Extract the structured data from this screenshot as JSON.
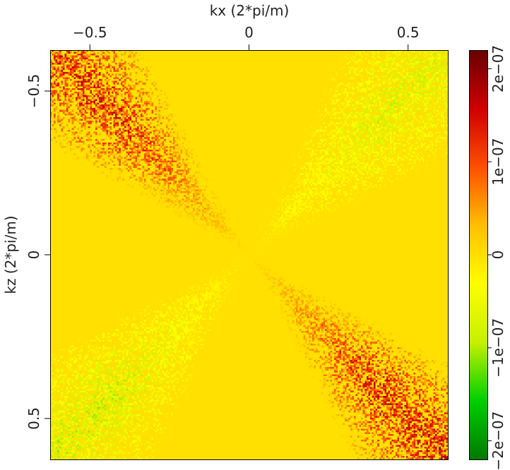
{
  "chart_data": {
    "type": "heatmap",
    "xlabel": "kx (2*pi/m)",
    "ylabel": "kz (2*pi/m)",
    "xlim": [
      -0.625,
      0.625
    ],
    "ylim": [
      -0.625,
      0.625
    ],
    "y_inverted": true,
    "x_ticks": [
      {
        "value": -0.5,
        "label": "−0.5"
      },
      {
        "value": 0,
        "label": "0"
      },
      {
        "value": 0.5,
        "label": "0.5"
      }
    ],
    "y_ticks": [
      {
        "value": -0.5,
        "label": "−0.5"
      },
      {
        "value": 0,
        "label": "0"
      },
      {
        "value": 0.5,
        "label": "0.5"
      }
    ],
    "colorbar": {
      "range": [
        -2.2e-07,
        2.2e-07
      ],
      "colormap": [
        "#007a00",
        "#00d000",
        "#c8f000",
        "#ffff00",
        "#ffc000",
        "#ff5000",
        "#d00000",
        "#6a0000"
      ],
      "ticks": [
        {
          "value": 2e-07,
          "label": "2e−07"
        },
        {
          "value": 1e-07,
          "label": "1e−07"
        },
        {
          "value": 0,
          "label": "0"
        },
        {
          "value": -1e-07,
          "label": "−1e−07"
        },
        {
          "value": -2e-07,
          "label": "−2e−07"
        }
      ]
    },
    "pattern": {
      "description_free": true,
      "lobes": [
        {
          "quadrant": "upper-left",
          "sign": "positive",
          "peak": 1.4e-07
        },
        {
          "quadrant": "lower-right",
          "sign": "positive",
          "peak": 1.5e-07
        },
        {
          "quadrant": "upper-right",
          "sign": "negative",
          "peak": -8e-08
        },
        {
          "quadrant": "lower-left",
          "sign": "negative",
          "peak": -9e-08
        }
      ],
      "background": 0
    }
  }
}
